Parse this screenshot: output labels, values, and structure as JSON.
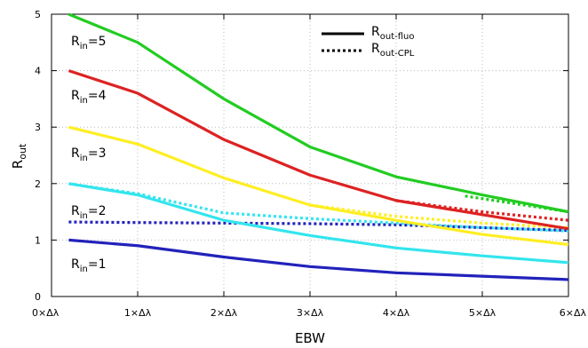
{
  "chart_data": {
    "type": "line",
    "xlabel": "EBW",
    "ylabel_main": "R",
    "ylabel_sub": "out",
    "xlim": [
      0,
      6
    ],
    "ylim": [
      0,
      5
    ],
    "x_ticks": [
      0,
      1,
      2,
      3,
      4,
      5,
      6
    ],
    "x_tick_labels": [
      "0×Δλ",
      "1×Δλ",
      "2×Δλ",
      "3×Δλ",
      "4×Δλ",
      "5×Δλ",
      "6×Δλ"
    ],
    "y_ticks": [
      0,
      1,
      2,
      3,
      4,
      5
    ],
    "y_tick_labels": [
      "0",
      "1",
      "2",
      "3",
      "4",
      "5"
    ],
    "grid": true,
    "legend_position": "top-right",
    "legend": [
      {
        "main": "R",
        "sub": "out-fluo",
        "style": "solid"
      },
      {
        "main": "R",
        "sub": "out-CPL",
        "style": "dotted"
      }
    ],
    "curve_labels": [
      {
        "main": "R",
        "sub": "in",
        "tail": "=5"
      },
      {
        "main": "R",
        "sub": "in",
        "tail": "=4"
      },
      {
        "main": "R",
        "sub": "in",
        "tail": "=3"
      },
      {
        "main": "R",
        "sub": "in",
        "tail": "=2"
      },
      {
        "main": "R",
        "sub": "in",
        "tail": "=1"
      }
    ],
    "x": [
      0.2,
      1,
      2,
      3,
      4,
      5,
      6
    ],
    "series": [
      {
        "color": "#22cc22",
        "fluo": [
          5.0,
          4.5,
          3.5,
          2.65,
          2.12,
          1.8,
          1.5
        ],
        "cpl_x": [
          4.8,
          6
        ],
        "cpl": [
          1.78,
          1.5
        ]
      },
      {
        "color": "#dd2222",
        "fluo": [
          4.0,
          3.6,
          2.78,
          2.15,
          1.7,
          1.45,
          1.2
        ],
        "cpl_x": [
          4,
          5,
          6
        ],
        "cpl": [
          1.7,
          1.5,
          1.35
        ]
      },
      {
        "color": "#ffee22",
        "fluo": [
          3.0,
          2.7,
          2.1,
          1.62,
          1.35,
          1.1,
          0.92
        ],
        "cpl_x": [
          3,
          4,
          5,
          6
        ],
        "cpl": [
          1.62,
          1.42,
          1.3,
          1.22
        ]
      },
      {
        "color": "#33e5ee",
        "fluo": [
          2.0,
          1.8,
          1.35,
          1.08,
          0.86,
          0.72,
          0.6
        ],
        "cpl_x": [
          0.2,
          1,
          2,
          3,
          4,
          5,
          6
        ],
        "cpl": [
          2.0,
          1.82,
          1.48,
          1.38,
          1.3,
          1.22,
          1.16
        ]
      },
      {
        "color": "#2222bb",
        "fluo": [
          1.0,
          0.9,
          0.7,
          0.53,
          0.42,
          0.36,
          0.3
        ],
        "cpl_x": [
          0.2,
          1,
          2,
          3,
          4,
          5,
          6
        ],
        "cpl": [
          1.32,
          1.31,
          1.3,
          1.29,
          1.27,
          1.22,
          1.17
        ]
      }
    ]
  }
}
